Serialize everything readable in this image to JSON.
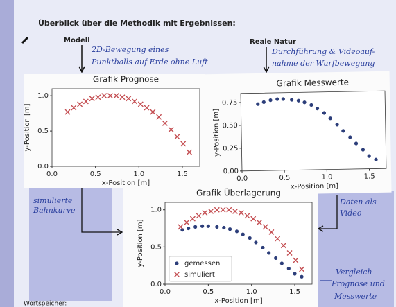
{
  "header": "Überblick über die Methodik mit Ergebnissen:",
  "left_label": "Modell",
  "left_note": [
    "2D-Bewegung eines",
    "Punktballs auf Erde ohne Luft"
  ],
  "right_label": "Reale Natur",
  "right_note": [
    "Durchführung & Videoauf-",
    "nahme der Wurfbewegung"
  ],
  "left_bottom_note": [
    "simulierte",
    "Bahnkurve"
  ],
  "right_bottom_note": [
    "Daten als",
    "Video"
  ],
  "bottom_right_note": [
    "Vergleich",
    "Prognose und",
    "Messwerte"
  ],
  "footer": "Wortspeicher:",
  "chart_data": [
    {
      "type": "scatter",
      "title": "Grafik Prognose",
      "xlabel": "x-Position [m]",
      "ylabel": "y-Position [m]",
      "x": [
        0.18,
        0.25,
        0.32,
        0.39,
        0.46,
        0.53,
        0.6,
        0.67,
        0.74,
        0.81,
        0.88,
        0.95,
        1.02,
        1.09,
        1.16,
        1.23,
        1.3,
        1.37,
        1.44,
        1.51,
        1.58
      ],
      "series": [
        {
          "color": "#c44e52",
          "marker": "x",
          "values": [
            0.77,
            0.83,
            0.88,
            0.92,
            0.96,
            0.98,
            1.0,
            1.0,
            1.0,
            0.98,
            0.96,
            0.92,
            0.88,
            0.83,
            0.77,
            0.7,
            0.61,
            0.52,
            0.42,
            0.32,
            0.2
          ]
        }
      ],
      "xlim": [
        0,
        1.7
      ],
      "ylim": [
        0,
        1.1
      ],
      "xticks": [
        {
          "value": 0,
          "label": "0.0"
        },
        0.5,
        {
          "value": 1,
          "label": "1.0"
        },
        1.5
      ],
      "yticks": [
        {
          "value": 0,
          "label": "0.0"
        },
        0.5,
        {
          "value": 1,
          "label": "1.0"
        }
      ]
    },
    {
      "type": "scatter",
      "title": "Grafik Messwerte",
      "xlabel": "x-Position [m]",
      "ylabel": "y-Position [m]",
      "x": [
        0.2,
        0.27,
        0.35,
        0.43,
        0.5,
        0.6,
        0.68,
        0.75,
        0.83,
        0.9,
        0.98,
        1.05,
        1.13,
        1.2,
        1.28,
        1.35,
        1.43,
        1.5,
        1.58
      ],
      "series": [
        {
          "color": "#2c3e7a",
          "marker": "o",
          "values": [
            0.73,
            0.75,
            0.77,
            0.78,
            0.78,
            0.77,
            0.76,
            0.74,
            0.71,
            0.67,
            0.62,
            0.56,
            0.49,
            0.42,
            0.35,
            0.28,
            0.21,
            0.14,
            0.1
          ]
        }
      ],
      "xlim": [
        0,
        1.7
      ],
      "ylim": [
        0,
        0.85
      ],
      "xticks": [
        {
          "value": 0,
          "label": "0.0"
        },
        0.5,
        {
          "value": 1,
          "label": "1.0"
        },
        1.5
      ],
      "yticks": [
        {
          "value": 0,
          "label": "0.00"
        },
        0.25,
        {
          "value": 0.5,
          "label": "0.50"
        },
        0.75
      ]
    },
    {
      "type": "scatter",
      "title": "Grafik Überlagerung",
      "xlabel": "x-Position [m]",
      "ylabel": "y-Position [m]",
      "legend": "lower left",
      "x": [
        0.18,
        0.25,
        0.32,
        0.39,
        0.46,
        0.53,
        0.6,
        0.67,
        0.74,
        0.81,
        0.88,
        0.95,
        1.02,
        1.09,
        1.16,
        1.23,
        1.3,
        1.37,
        1.44,
        1.51,
        1.58
      ],
      "series": [
        {
          "name": "gemessen",
          "color": "#2c3e7a",
          "marker": "o",
          "x": [
            0.2,
            0.27,
            0.35,
            0.43,
            0.5,
            0.6,
            0.68,
            0.75,
            0.83,
            0.9,
            0.98,
            1.05,
            1.13,
            1.2,
            1.28,
            1.35,
            1.43,
            1.5,
            1.58
          ],
          "values": [
            0.73,
            0.75,
            0.77,
            0.78,
            0.78,
            0.77,
            0.76,
            0.74,
            0.71,
            0.67,
            0.62,
            0.56,
            0.49,
            0.42,
            0.35,
            0.28,
            0.21,
            0.14,
            0.1
          ]
        },
        {
          "name": "simuliert",
          "color": "#c44e52",
          "marker": "x",
          "values": [
            0.77,
            0.83,
            0.88,
            0.92,
            0.96,
            0.98,
            1.0,
            1.0,
            1.0,
            0.98,
            0.96,
            0.92,
            0.88,
            0.83,
            0.77,
            0.7,
            0.61,
            0.52,
            0.42,
            0.32,
            0.2
          ]
        }
      ],
      "xlim": [
        0,
        1.7
      ],
      "ylim": [
        0,
        1.1
      ],
      "xticks": [
        {
          "value": 0,
          "label": "0.0"
        },
        0.5,
        {
          "value": 1,
          "label": "1.0"
        },
        1.5
      ],
      "yticks": [
        {
          "value": 0,
          "label": "0.0"
        },
        0.5,
        {
          "value": 1,
          "label": "1.0"
        }
      ]
    }
  ]
}
